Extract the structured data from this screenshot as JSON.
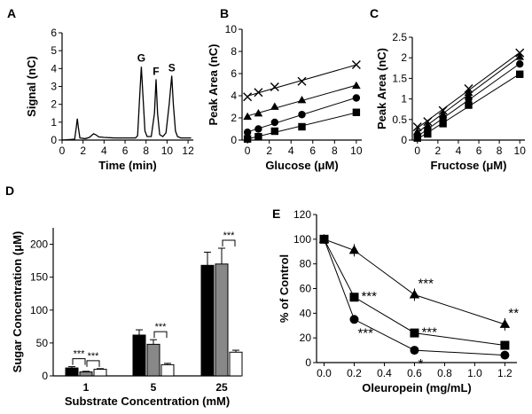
{
  "chart_data": [
    {
      "panel": "A",
      "type": "line",
      "xlabel": "Time (min)",
      "ylabel": "Signal (nC)",
      "xlim": [
        0,
        12.5
      ],
      "ylim": [
        0,
        6
      ],
      "xticks": [
        0,
        2,
        4,
        6,
        8,
        10,
        12
      ],
      "yticks": [
        0,
        1,
        2,
        3,
        4,
        5,
        6
      ],
      "series": [
        {
          "name": "chromatogram",
          "x": [
            0,
            1.2,
            1.35,
            1.45,
            1.55,
            1.7,
            2.2,
            2.6,
            3.0,
            3.2,
            3.5,
            4.0,
            5.0,
            6.0,
            7.0,
            7.2,
            7.4,
            7.55,
            7.7,
            7.9,
            8.1,
            8.5,
            8.8,
            8.95,
            9.1,
            9.3,
            9.6,
            9.9,
            10.2,
            10.45,
            10.6,
            10.8,
            11.0,
            11.3,
            12.3
          ],
          "y": [
            0,
            0.05,
            0.7,
            1.2,
            0.7,
            0.12,
            0.08,
            0.15,
            0.35,
            0.3,
            0.18,
            0.15,
            0.12,
            0.12,
            0.12,
            0.25,
            2.5,
            4.1,
            2.5,
            0.5,
            0.2,
            0.2,
            1.5,
            3.4,
            1.5,
            0.3,
            0.2,
            0.4,
            2.0,
            3.6,
            2.0,
            0.5,
            0.2,
            0.12,
            0.12
          ]
        }
      ],
      "annotations": [
        {
          "text": "G",
          "x": 7.55,
          "y": 4.4
        },
        {
          "text": "F",
          "x": 8.95,
          "y": 3.65
        },
        {
          "text": "S",
          "x": 10.45,
          "y": 3.85
        }
      ]
    },
    {
      "panel": "B",
      "type": "scatter",
      "xlabel": "Glucose (μM)",
      "ylabel": "Peak Area (nC)",
      "xlim": [
        -0.5,
        10.5
      ],
      "ylim": [
        0,
        10
      ],
      "xticks": [
        0,
        2,
        4,
        6,
        8,
        10
      ],
      "yticks": [
        0,
        2,
        4,
        6,
        8,
        10
      ],
      "x": [
        0,
        1,
        2.5,
        5,
        10
      ],
      "series": [
        {
          "name": "x-marker",
          "marker": "x",
          "values": [
            3.9,
            4.3,
            4.8,
            5.3,
            6.8
          ]
        },
        {
          "name": "triangle",
          "marker": "triangle",
          "values": [
            2.1,
            2.4,
            3.0,
            3.6,
            4.9
          ]
        },
        {
          "name": "circle",
          "marker": "circle",
          "values": [
            0.7,
            1.0,
            1.6,
            2.3,
            3.8
          ]
        },
        {
          "name": "square",
          "marker": "square",
          "values": [
            0.1,
            0.3,
            0.8,
            1.2,
            2.5
          ]
        }
      ]
    },
    {
      "panel": "C",
      "type": "scatter",
      "xlabel": "Fructose (μM)",
      "ylabel": "Peak Area (nC)",
      "xlim": [
        -0.5,
        10.5
      ],
      "ylim": [
        0,
        2.5
      ],
      "xticks": [
        0,
        2,
        4,
        6,
        8,
        10
      ],
      "yticks": [
        0,
        0.5,
        1,
        1.5,
        2,
        2.5
      ],
      "x": [
        0,
        1,
        2.5,
        5,
        10
      ],
      "series": [
        {
          "name": "x-marker",
          "marker": "x",
          "values": [
            0.32,
            0.45,
            0.72,
            1.25,
            2.12
          ]
        },
        {
          "name": "triangle",
          "marker": "triangle",
          "values": [
            0.2,
            0.35,
            0.62,
            1.15,
            2.02
          ]
        },
        {
          "name": "circle",
          "marker": "circle",
          "values": [
            0.1,
            0.25,
            0.52,
            1.0,
            1.85
          ]
        },
        {
          "name": "square",
          "marker": "square",
          "values": [
            0.05,
            0.15,
            0.4,
            0.85,
            1.6
          ]
        }
      ]
    },
    {
      "panel": "D",
      "type": "bar",
      "xlabel": "Substrate Concentration (mM)",
      "ylabel": "Sugar Concentration (μM)",
      "ylim": [
        0,
        225
      ],
      "yticks": [
        0,
        50,
        100,
        150,
        200
      ],
      "categories": [
        "1",
        "5",
        "25"
      ],
      "series": [
        {
          "name": "black",
          "color": "#000000",
          "values": [
            12,
            62,
            168
          ],
          "errors": [
            2,
            8,
            20
          ]
        },
        {
          "name": "gray",
          "color": "#888888",
          "values": [
            6,
            48,
            170
          ],
          "errors": [
            1,
            7,
            24
          ]
        },
        {
          "name": "white",
          "color": "#ffffff",
          "values": [
            10,
            17,
            36
          ],
          "errors": [
            1,
            2,
            3
          ]
        }
      ],
      "significance": [
        {
          "text": "***",
          "category": 0,
          "from": 0,
          "to": 1
        },
        {
          "text": "***",
          "category": 0,
          "from": 1,
          "to": 2
        },
        {
          "text": "***",
          "category": 1,
          "from": 1,
          "to": 2
        },
        {
          "text": "***",
          "category": 2,
          "from": 1,
          "to": 2
        }
      ]
    },
    {
      "panel": "E",
      "type": "line",
      "xlabel": "Oleuropein (mg/mL)",
      "ylabel": "% of Control",
      "xlim": [
        -0.05,
        1.28
      ],
      "ylim": [
        0,
        120
      ],
      "xticks": [
        0.0,
        0.2,
        0.4,
        0.6,
        0.8,
        1.0,
        1.2
      ],
      "yticks": [
        0,
        20,
        40,
        60,
        80,
        100,
        120
      ],
      "x": [
        0,
        0.2,
        0.6,
        1.2
      ],
      "series": [
        {
          "name": "triangle",
          "marker": "triangle",
          "values": [
            100,
            91,
            55,
            31
          ],
          "labels": [
            "",
            "",
            "***",
            "**"
          ]
        },
        {
          "name": "square",
          "marker": "square",
          "values": [
            100,
            53,
            24,
            14
          ],
          "labels": [
            "",
            "***",
            "***",
            ""
          ]
        },
        {
          "name": "circle",
          "marker": "circle",
          "values": [
            100,
            35,
            10,
            6
          ],
          "labels": [
            "",
            "***",
            "*",
            ""
          ]
        }
      ]
    }
  ]
}
